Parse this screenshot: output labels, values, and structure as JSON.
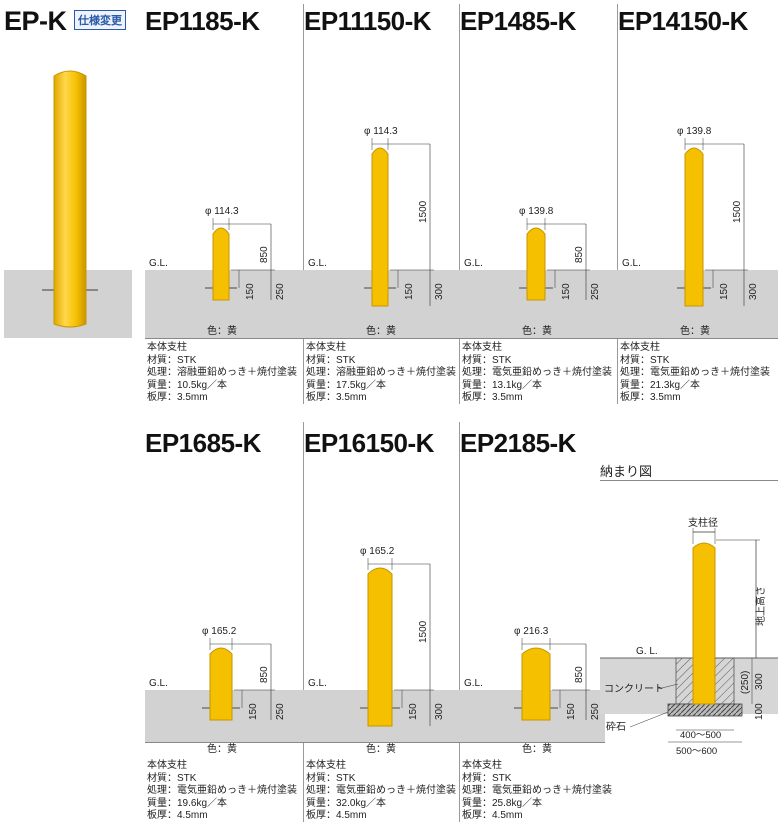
{
  "series": {
    "code": "EP-K",
    "badge": "仕様変更"
  },
  "labels": {
    "gl": "G.L.",
    "color": "色：黄"
  },
  "products": [
    {
      "model": "EP1185-K",
      "diameter": "φ 114.3",
      "height": "850",
      "embed_a": "150",
      "embed_b": "250",
      "specs": [
        "本体支柱",
        "材質：STK",
        "処理：溶融亜鉛めっき＋焼付塗装",
        "質量：10.5kg／本",
        "板厚：3.5mm"
      ]
    },
    {
      "model": "EP11150-K",
      "diameter": "φ 114.3",
      "height": "1500",
      "embed_a": "150",
      "embed_b": "300",
      "specs": [
        "本体支柱",
        "材質：STK",
        "処理：溶融亜鉛めっき＋焼付塗装",
        "質量：17.5kg／本",
        "板厚：3.5mm"
      ]
    },
    {
      "model": "EP1485-K",
      "diameter": "φ 139.8",
      "height": "850",
      "embed_a": "150",
      "embed_b": "250",
      "specs": [
        "本体支柱",
        "材質：STK",
        "処理：電気亜鉛めっき＋焼付塗装",
        "質量：13.1kg／本",
        "板厚：3.5mm"
      ]
    },
    {
      "model": "EP14150-K",
      "diameter": "φ 139.8",
      "height": "1500",
      "embed_a": "150",
      "embed_b": "300",
      "specs": [
        "本体支柱",
        "材質：STK",
        "処理：電気亜鉛めっき＋焼付塗装",
        "質量：21.3kg／本",
        "板厚：3.5mm"
      ]
    },
    {
      "model": "EP1685-K",
      "diameter": "φ 165.2",
      "height": "850",
      "embed_a": "150",
      "embed_b": "250",
      "specs": [
        "本体支柱",
        "材質：STK",
        "処理：電気亜鉛めっき＋焼付塗装",
        "質量：19.6kg／本",
        "板厚：4.5mm"
      ]
    },
    {
      "model": "EP16150-K",
      "diameter": "φ 165.2",
      "height": "1500",
      "embed_a": "150",
      "embed_b": "300",
      "specs": [
        "本体支柱",
        "材質：STK",
        "処理：電気亜鉛めっき＋焼付塗装",
        "質量：32.0kg／本",
        "板厚：4.5mm"
      ]
    },
    {
      "model": "EP2185-K",
      "diameter": "φ 216.3",
      "height": "850",
      "embed_a": "150",
      "embed_b": "250",
      "specs": [
        "本体支柱",
        "材質：STK",
        "処理：電気亜鉛めっき＋焼付塗装",
        "質量：25.8kg／本",
        "板厚：4.5mm"
      ]
    }
  ],
  "installation": {
    "title": "納まり図",
    "post_diameter": "支柱径",
    "above_ground_height": "地上高さ",
    "gl": "G. L.",
    "concrete": "コンクリート",
    "gravel": "砕石",
    "dim_250": "(250)",
    "dim_300": "300",
    "dim_100": "100",
    "width_inner": "400〜500",
    "width_outer": "500〜600"
  },
  "colors": {
    "post": "#f5c000",
    "post_edge": "#c99500",
    "ground": "#d2d2d2",
    "badge": "#2a5aa8"
  }
}
